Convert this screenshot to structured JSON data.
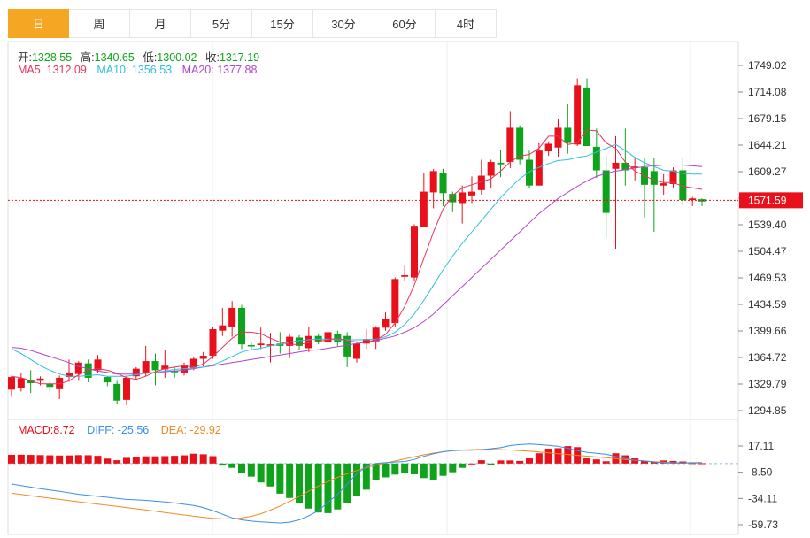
{
  "tabs": [
    {
      "label": "日",
      "active": true
    },
    {
      "label": "周",
      "active": false
    },
    {
      "label": "月",
      "active": false
    },
    {
      "label": "5分",
      "active": false
    },
    {
      "label": "15分",
      "active": false
    },
    {
      "label": "30分",
      "active": false
    },
    {
      "label": "60分",
      "active": false
    },
    {
      "label": "4时",
      "active": false
    }
  ],
  "ohlc_line": {
    "open_label": "开:",
    "open": "1328.55",
    "high_label": "高:",
    "high": "1340.65",
    "low_label": "低:",
    "low": "1300.02",
    "close_label": "收:",
    "close": "1317.19"
  },
  "ma_line": {
    "ma5": "MA5: 1312.09",
    "ma10": "MA10: 1356.53",
    "ma20": "MA20: 1377.88"
  },
  "macd_line": {
    "macd": "MACD:8.72",
    "diff": "DIFF: -25.56",
    "dea": "DEA: -29.92"
  },
  "colors": {
    "up": "#e8101a",
    "down": "#0ea31a",
    "ma5": "#e8335f",
    "ma10": "#2ec0de",
    "ma20": "#b046c8",
    "diff": "#3a8ee6",
    "dea": "#f08a24",
    "active_tab": "#f5a623"
  },
  "chart_data": [
    {
      "type": "candlestick",
      "y_ticks": [
        "1749.02",
        "1714.08",
        "1679.15",
        "1644.21",
        "1609.27",
        "1574.34",
        "1539.40",
        "1504.47",
        "1469.53",
        "1434.59",
        "1399.66",
        "1364.72",
        "1329.79",
        "1294.85"
      ],
      "ylim": [
        1294.85,
        1749.02
      ],
      "last_price": "1571.59",
      "candles": [
        [
          1322.5,
          1339.0,
          1313.0,
          1340.2
        ],
        [
          1325.0,
          1337.5,
          1320.0,
          1344.0
        ],
        [
          1335.0,
          1331.0,
          1318.0,
          1348.0
        ],
        [
          1334.0,
          1337.0,
          1328.0,
          1340.0
        ],
        [
          1330.0,
          1326.0,
          1320.0,
          1334.0
        ],
        [
          1323.0,
          1338.0,
          1310.0,
          1341.0
        ],
        [
          1339.0,
          1345.0,
          1333.0,
          1362.0
        ],
        [
          1343.0,
          1358.0,
          1334.0,
          1360.0
        ],
        [
          1357.0,
          1338.0,
          1332.0,
          1362.0
        ],
        [
          1348.0,
          1362.0,
          1344.0,
          1368.0
        ],
        [
          1339.0,
          1332.0,
          1327.0,
          1340.0
        ],
        [
          1330.0,
          1308.0,
          1303.0,
          1334.0
        ],
        [
          1309.0,
          1338.0,
          1302.0,
          1341.0
        ],
        [
          1340.0,
          1350.0,
          1335.0,
          1352.0
        ],
        [
          1345.0,
          1360.0,
          1340.0,
          1380.0
        ],
        [
          1360.0,
          1348.0,
          1328.0,
          1370.0
        ],
        [
          1349.0,
          1354.0,
          1338.0,
          1374.0
        ],
        [
          1347.0,
          1346.0,
          1338.0,
          1352.0
        ],
        [
          1345.0,
          1355.0,
          1341.0,
          1358.0
        ],
        [
          1351.0,
          1363.0,
          1348.0,
          1366.0
        ],
        [
          1363.0,
          1367.0,
          1353.0,
          1372.0
        ],
        [
          1367.0,
          1402.0,
          1363.0,
          1405.0
        ],
        [
          1400.0,
          1407.0,
          1393.0,
          1430.0
        ],
        [
          1405.0,
          1430.0,
          1392.0,
          1439.0
        ],
        [
          1430.0,
          1382.0,
          1376.0,
          1434.0
        ],
        [
          1381.0,
          1380.0,
          1375.0,
          1384.0
        ],
        [
          1381.0,
          1383.0,
          1376.0,
          1404.0
        ],
        [
          1382.0,
          1382.0,
          1358.0,
          1397.0
        ],
        [
          1383.0,
          1380.0,
          1370.0,
          1398.0
        ],
        [
          1380.0,
          1392.0,
          1364.0,
          1396.0
        ],
        [
          1391.0,
          1380.0,
          1375.0,
          1394.0
        ],
        [
          1377.0,
          1393.0,
          1372.0,
          1405.0
        ],
        [
          1393.0,
          1386.0,
          1382.0,
          1396.0
        ],
        [
          1385.0,
          1398.0,
          1382.0,
          1408.0
        ],
        [
          1396.0,
          1385.0,
          1380.0,
          1400.0
        ],
        [
          1393.0,
          1366.0,
          1352.0,
          1398.0
        ],
        [
          1363.0,
          1383.0,
          1358.0,
          1386.0
        ],
        [
          1383.0,
          1389.0,
          1376.0,
          1402.0
        ],
        [
          1386.0,
          1404.0,
          1376.0,
          1406.0
        ],
        [
          1404.0,
          1416.0,
          1400.0,
          1424.0
        ],
        [
          1410.0,
          1468.0,
          1405.0,
          1470.0
        ],
        [
          1471.0,
          1473.0,
          1466.0,
          1486.0
        ],
        [
          1470.0,
          1538.0,
          1466.0,
          1540.0
        ],
        [
          1537.0,
          1583.0,
          1537.0,
          1608.0
        ],
        [
          1582.0,
          1610.0,
          1561.0,
          1613.0
        ],
        [
          1607.0,
          1581.0,
          1564.0,
          1613.0
        ],
        [
          1580.0,
          1569.0,
          1556.0,
          1583.0
        ],
        [
          1568.0,
          1582.0,
          1541.0,
          1591.0
        ],
        [
          1578.0,
          1583.0,
          1568.0,
          1603.0
        ],
        [
          1585.0,
          1604.0,
          1579.0,
          1625.0
        ],
        [
          1604.0,
          1622.0,
          1587.0,
          1625.0
        ],
        [
          1621.0,
          1619.0,
          1602.0,
          1638.0
        ],
        [
          1622.0,
          1667.0,
          1614.0,
          1688.0
        ],
        [
          1667.0,
          1625.0,
          1619.0,
          1670.0
        ],
        [
          1625.0,
          1591.0,
          1587.0,
          1637.0
        ],
        [
          1591.0,
          1637.0,
          1591.0,
          1647.0
        ],
        [
          1636.0,
          1646.0,
          1630.0,
          1649.0
        ],
        [
          1641.0,
          1667.0,
          1629.0,
          1678.0
        ],
        [
          1667.0,
          1647.0,
          1633.0,
          1698.0
        ],
        [
          1645.0,
          1723.0,
          1643.0,
          1732.0
        ],
        [
          1720.0,
          1643.0,
          1643.0,
          1732.0
        ],
        [
          1642.0,
          1611.0,
          1601.0,
          1666.0
        ],
        [
          1611.0,
          1555.0,
          1522.0,
          1630.0
        ],
        [
          1613.0,
          1621.0,
          1508.0,
          1656.0
        ],
        [
          1621.0,
          1611.0,
          1591.0,
          1666.0
        ],
        [
          1616.0,
          1616.0,
          1598.0,
          1627.0
        ],
        [
          1615.0,
          1592.0,
          1549.0,
          1628.0
        ],
        [
          1610.0,
          1592.0,
          1530.0,
          1627.0
        ],
        [
          1591.0,
          1594.0,
          1579.0,
          1606.0
        ],
        [
          1593.0,
          1611.0,
          1588.0,
          1615.0
        ],
        [
          1611.0,
          1572.0,
          1565.0,
          1627.0
        ],
        [
          1572.0,
          1574.0,
          1564.0,
          1576.0
        ],
        [
          1573.0,
          1570.0,
          1564.0,
          1574.0
        ]
      ],
      "ma5": [
        1340,
        1338,
        1334,
        1330,
        1330,
        1330,
        1334,
        1342,
        1348,
        1350,
        1348,
        1344,
        1338,
        1336,
        1340,
        1346,
        1350,
        1352,
        1354,
        1352,
        1356,
        1366,
        1378,
        1390,
        1398,
        1398,
        1396,
        1390,
        1385,
        1382,
        1382,
        1384,
        1386,
        1388,
        1390,
        1387,
        1385,
        1385,
        1388,
        1395,
        1410,
        1432,
        1460,
        1495,
        1530,
        1560,
        1578,
        1588,
        1592,
        1596,
        1600,
        1610,
        1622,
        1630,
        1632,
        1640,
        1656,
        1656,
        1645,
        1647,
        1664,
        1663,
        1647,
        1640,
        1622,
        1610,
        1604,
        1598,
        1595,
        1595,
        1590,
        1588,
        1586
      ],
      "ma10": [
        1376,
        1370,
        1362,
        1354,
        1348,
        1343,
        1340,
        1340,
        1341,
        1342,
        1340,
        1340,
        1340,
        1342,
        1344,
        1345,
        1347,
        1349,
        1350,
        1351,
        1352,
        1355,
        1360,
        1366,
        1372,
        1375,
        1377,
        1380,
        1382,
        1385,
        1387,
        1388,
        1389,
        1389,
        1388,
        1388,
        1388,
        1388,
        1389,
        1392,
        1398,
        1408,
        1422,
        1440,
        1460,
        1480,
        1498,
        1515,
        1530,
        1545,
        1560,
        1575,
        1588,
        1600,
        1609,
        1615,
        1620,
        1624,
        1625,
        1628,
        1630,
        1635,
        1640,
        1645,
        1637,
        1628,
        1621,
        1616,
        1611,
        1610,
        1607,
        1606,
        1606
      ],
      "ma20": [
        1378,
        1377,
        1374,
        1370,
        1366,
        1362,
        1358,
        1353,
        1350,
        1347,
        1345,
        1343,
        1343,
        1343,
        1344,
        1345,
        1346,
        1347,
        1348,
        1350,
        1352,
        1354,
        1356,
        1358,
        1360,
        1362,
        1364,
        1366,
        1368,
        1370,
        1372,
        1374,
        1375,
        1377,
        1379,
        1381,
        1383,
        1385,
        1387,
        1390,
        1393,
        1398,
        1404,
        1412,
        1422,
        1434,
        1446,
        1458,
        1470,
        1482,
        1494,
        1506,
        1518,
        1530,
        1542,
        1554,
        1564,
        1574,
        1582,
        1590,
        1597,
        1603,
        1607,
        1610,
        1612,
        1614,
        1616,
        1617,
        1618,
        1618,
        1618,
        1617,
        1616
      ]
    },
    {
      "type": "macd",
      "y_ticks": [
        "17.11",
        "-8.50",
        "-34.11",
        "-59.73"
      ],
      "ylim": [
        -59.73,
        17.11
      ],
      "macd": [
        8.5,
        8.6,
        8.4,
        8.2,
        8.0,
        7.8,
        7.9,
        8.2,
        8.1,
        7.5,
        4.8,
        3.2,
        5.5,
        6.2,
        7.0,
        7.0,
        7.2,
        7.5,
        8.0,
        9.6,
        9.0,
        7.2,
        -2.0,
        -4.2,
        -9.2,
        -12.8,
        -18.5,
        -22.4,
        -29.4,
        -33.6,
        -38.5,
        -44.0,
        -47.8,
        -48.4,
        -44.8,
        -38.5,
        -32.0,
        -25.5,
        -16.2,
        -13.5,
        -10.8,
        -9.0,
        -10.5,
        -14.2,
        -16.2,
        -12.0,
        -8.5,
        -4.2,
        0.0,
        3.2,
        -1.0,
        3.0,
        3.0,
        2.5,
        5.0,
        10.0,
        14.5,
        15.0,
        17.0,
        16.0,
        5.0,
        4.0,
        2.2,
        10.0,
        8.0,
        5.0,
        2.5,
        2.0,
        3.0,
        2.5,
        2.0,
        0.4,
        0.3
      ],
      "diff": [
        -20.0,
        -21.5,
        -23.0,
        -24.5,
        -25.8,
        -27.2,
        -28.6,
        -30.0,
        -31.0,
        -32.0,
        -33.0,
        -34.0,
        -35.0,
        -35.5,
        -36.0,
        -36.8,
        -37.5,
        -38.5,
        -39.8,
        -41.0,
        -43.0,
        -46.0,
        -49.5,
        -53.0,
        -55.0,
        -56.2,
        -57.0,
        -57.5,
        -58.0,
        -57.2,
        -55.0,
        -51.0,
        -46.0,
        -38.0,
        -30.0,
        -20.0,
        -10.0,
        -3.0,
        0.0,
        1.0,
        1.5,
        2.0,
        4.0,
        7.0,
        9.5,
        11.5,
        12.5,
        13.0,
        13.0,
        13.5,
        14.5,
        15.5,
        17.5,
        18.5,
        19.0,
        18.5,
        17.8,
        16.8,
        15.0,
        12.5,
        11.0,
        10.0,
        9.0,
        7.0,
        5.0,
        3.2,
        2.5,
        1.5,
        0.8,
        0.5,
        0.6,
        0.8,
        0.9
      ],
      "dea": [
        -29.0,
        -30.2,
        -31.4,
        -32.6,
        -33.8,
        -35.0,
        -36.2,
        -37.4,
        -38.5,
        -39.6,
        -40.7,
        -41.8,
        -43.0,
        -44.2,
        -45.4,
        -46.6,
        -47.8,
        -49.0,
        -50.2,
        -51.4,
        -52.5,
        -53.5,
        -54.0,
        -54.0,
        -53.2,
        -51.5,
        -49.0,
        -45.5,
        -41.5,
        -37.0,
        -32.0,
        -27.0,
        -22.0,
        -17.5,
        -13.5,
        -10.0,
        -6.8,
        -4.0,
        -1.5,
        0.5,
        2.5,
        4.5,
        6.5,
        8.5,
        10.2,
        11.5,
        12.5,
        13.2,
        13.6,
        13.8,
        13.8,
        13.6,
        13.2,
        12.6,
        12.0,
        11.2,
        10.4,
        9.6,
        8.8,
        8.0,
        7.2,
        6.4,
        5.6,
        4.8,
        4.0,
        3.2,
        2.5,
        1.8,
        1.2,
        0.8,
        0.6,
        0.5,
        0.5
      ]
    }
  ]
}
